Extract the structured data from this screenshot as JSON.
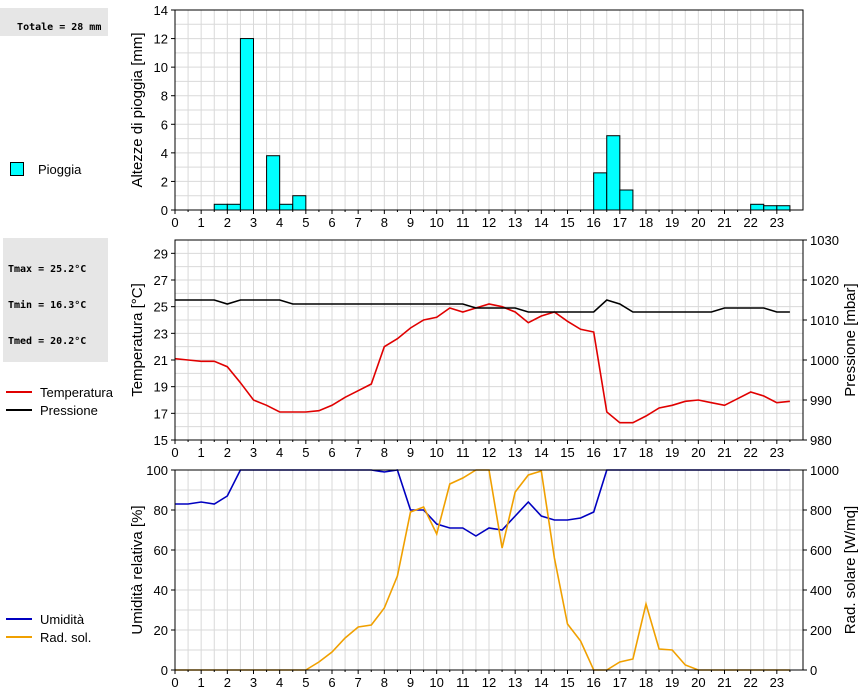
{
  "rain_info": {
    "total": "Totale = 28 mm"
  },
  "temp_info": {
    "tmax": "Tmax = 25.2°C",
    "tmin": "Tmin = 16.3°C",
    "tmed": "Tmed = 20.2°C"
  },
  "legends": {
    "rain": [
      {
        "label": "Pioggia",
        "color": "#00ffff",
        "kind": "box"
      }
    ],
    "temp": [
      {
        "label": "Temperatura",
        "color": "#e00000",
        "kind": "line"
      },
      {
        "label": "Pressione",
        "color": "#000000",
        "kind": "line"
      }
    ],
    "hum": [
      {
        "label": "Umidità",
        "color": "#0000c0",
        "kind": "line"
      },
      {
        "label": "Rad. sol.",
        "color": "#f0a000",
        "kind": "line"
      }
    ]
  },
  "chart_data": [
    {
      "type": "bar",
      "ylabel": "Altezze di pioggia [mm]",
      "xlim": [
        0,
        24
      ],
      "ylim": [
        0,
        14
      ],
      "xticks": [
        0,
        1,
        2,
        3,
        4,
        5,
        6,
        7,
        8,
        9,
        10,
        11,
        12,
        13,
        14,
        15,
        16,
        17,
        18,
        19,
        20,
        21,
        22,
        23
      ],
      "yticks": [
        0,
        2,
        4,
        6,
        8,
        10,
        12,
        14
      ],
      "grid": true,
      "bar_width": 0.5,
      "series": [
        {
          "name": "Pioggia",
          "color": "#00ffff",
          "points": [
            {
              "x": 1.5,
              "y": 0.4
            },
            {
              "x": 2.0,
              "y": 0.4
            },
            {
              "x": 2.5,
              "y": 12.0
            },
            {
              "x": 3.5,
              "y": 3.8
            },
            {
              "x": 4.0,
              "y": 0.4
            },
            {
              "x": 4.5,
              "y": 1.0
            },
            {
              "x": 16.0,
              "y": 2.6
            },
            {
              "x": 16.5,
              "y": 5.2
            },
            {
              "x": 17.0,
              "y": 1.4
            },
            {
              "x": 22.0,
              "y": 0.4
            },
            {
              "x": 22.5,
              "y": 0.3
            },
            {
              "x": 23.0,
              "y": 0.3
            }
          ]
        }
      ]
    },
    {
      "type": "line",
      "ylabel": "Temperatura [°C]",
      "y2label": "Pressione [mbar]",
      "xlim": [
        0,
        24
      ],
      "ylim": [
        15,
        30
      ],
      "y2lim": [
        980,
        1030
      ],
      "xticks": [
        0,
        1,
        2,
        3,
        4,
        5,
        6,
        7,
        8,
        9,
        10,
        11,
        12,
        13,
        14,
        15,
        16,
        17,
        18,
        19,
        20,
        21,
        22,
        23
      ],
      "yticks": [
        15,
        17,
        19,
        21,
        23,
        25,
        27,
        29
      ],
      "y2ticks": [
        980,
        990,
        1000,
        1010,
        1020,
        1030
      ],
      "grid": true,
      "series": [
        {
          "name": "Temperatura",
          "color": "#e00000",
          "axis": "left",
          "x": [
            0,
            0.5,
            1,
            1.5,
            2,
            2.5,
            3,
            3.5,
            4,
            4.5,
            5,
            5.5,
            6,
            6.5,
            7,
            7.5,
            8,
            8.5,
            9,
            9.5,
            10,
            10.5,
            11,
            11.5,
            12,
            12.5,
            13,
            13.5,
            14,
            14.5,
            15,
            15.5,
            16,
            16.5,
            17,
            17.5,
            18,
            18.5,
            19,
            19.5,
            20,
            20.5,
            21,
            21.5,
            22,
            22.5,
            23,
            23.5
          ],
          "y": [
            21.1,
            21.0,
            20.9,
            20.9,
            20.5,
            19.3,
            18.0,
            17.6,
            17.1,
            17.1,
            17.1,
            17.2,
            17.6,
            18.2,
            18.7,
            19.2,
            22.0,
            22.6,
            23.4,
            24.0,
            24.2,
            24.9,
            24.6,
            24.9,
            25.2,
            25.0,
            24.6,
            23.8,
            24.3,
            24.6,
            23.9,
            23.3,
            23.1,
            17.1,
            16.3,
            16.3,
            16.8,
            17.4,
            17.6,
            17.9,
            18.0,
            17.8,
            17.6,
            18.1,
            18.6,
            18.3,
            17.8,
            17.9
          ]
        },
        {
          "name": "Pressione",
          "color": "#000000",
          "axis": "right",
          "x": [
            0,
            0.5,
            1,
            1.5,
            2,
            2.5,
            3,
            3.5,
            4,
            4.5,
            5,
            5.5,
            6,
            6.5,
            7,
            7.5,
            8,
            8.5,
            9,
            9.5,
            10,
            10.5,
            11,
            11.5,
            12,
            12.5,
            13,
            13.5,
            14,
            14.5,
            15,
            15.5,
            16,
            16.5,
            17,
            17.5,
            18,
            18.5,
            19,
            19.5,
            20,
            20.5,
            21,
            21.5,
            22,
            22.5,
            23,
            23.5
          ],
          "y": [
            1015,
            1015,
            1015,
            1015,
            1014,
            1015,
            1015,
            1015,
            1015,
            1014,
            1014,
            1014,
            1014,
            1014,
            1014,
            1014,
            1014,
            1014,
            1014,
            1014,
            1014,
            1014,
            1014,
            1013,
            1013,
            1013,
            1013,
            1012,
            1012,
            1012,
            1012,
            1012,
            1012,
            1015,
            1014,
            1012,
            1012,
            1012,
            1012,
            1012,
            1012,
            1012,
            1013,
            1013,
            1013,
            1013,
            1012,
            1012
          ]
        }
      ]
    },
    {
      "type": "line",
      "ylabel": "Umidità relativa [%]",
      "y2label": "Rad. solare [W/mq]",
      "xlim": [
        0,
        24
      ],
      "ylim": [
        0,
        100
      ],
      "y2lim": [
        0,
        1000
      ],
      "xticks": [
        0,
        1,
        2,
        3,
        4,
        5,
        6,
        7,
        8,
        9,
        10,
        11,
        12,
        13,
        14,
        15,
        16,
        17,
        18,
        19,
        20,
        21,
        22,
        23
      ],
      "yticks": [
        0,
        20,
        40,
        60,
        80,
        100
      ],
      "y2ticks": [
        0,
        200,
        400,
        600,
        800,
        1000
      ],
      "grid": true,
      "series": [
        {
          "name": "Umidità",
          "color": "#0000c0",
          "axis": "left",
          "x": [
            0,
            0.5,
            1,
            1.5,
            2,
            2.5,
            3,
            3.5,
            4,
            4.5,
            5,
            5.5,
            6,
            6.5,
            7,
            7.5,
            8,
            8.5,
            9,
            9.5,
            10,
            10.5,
            11,
            11.5,
            12,
            12.5,
            13,
            13.5,
            14,
            14.5,
            15,
            15.5,
            16,
            16.5,
            17,
            17.5,
            18,
            18.5,
            19,
            19.5,
            20,
            20.5,
            21,
            21.5,
            22,
            22.5,
            23,
            23.5
          ],
          "y": [
            83,
            83,
            84,
            83,
            87,
            100,
            100,
            100,
            100,
            100,
            100,
            100,
            100,
            100,
            100,
            100,
            99,
            100,
            80,
            80,
            73,
            71,
            71,
            67,
            71,
            70,
            77,
            84,
            77,
            75,
            75,
            76,
            79,
            100,
            100,
            100,
            100,
            100,
            100,
            100,
            100,
            100,
            100,
            100,
            100,
            100,
            100,
            100
          ]
        },
        {
          "name": "Rad. sol.",
          "color": "#f0a000",
          "axis": "right",
          "x": [
            0,
            0.5,
            1,
            1.5,
            2,
            2.5,
            3,
            3.5,
            4,
            4.5,
            5,
            5.5,
            6,
            6.5,
            7,
            7.5,
            8,
            8.5,
            9,
            9.5,
            10,
            10.5,
            11,
            11.5,
            12,
            12.5,
            13,
            13.5,
            14,
            14.5,
            15,
            15.5,
            16,
            16.5,
            17,
            17.5,
            18,
            18.5,
            19,
            19.5,
            20,
            20.5,
            21,
            21.5,
            22,
            22.5,
            23,
            23.5
          ],
          "y": [
            0,
            0,
            0,
            0,
            0,
            0,
            0,
            0,
            0,
            0,
            0,
            40,
            90,
            160,
            215,
            225,
            310,
            470,
            790,
            815,
            680,
            930,
            960,
            1000,
            1000,
            610,
            890,
            975,
            995,
            560,
            230,
            145,
            0,
            0,
            40,
            55,
            330,
            105,
            100,
            25,
            0,
            0,
            0,
            0,
            0,
            0,
            0,
            0
          ]
        }
      ]
    }
  ]
}
